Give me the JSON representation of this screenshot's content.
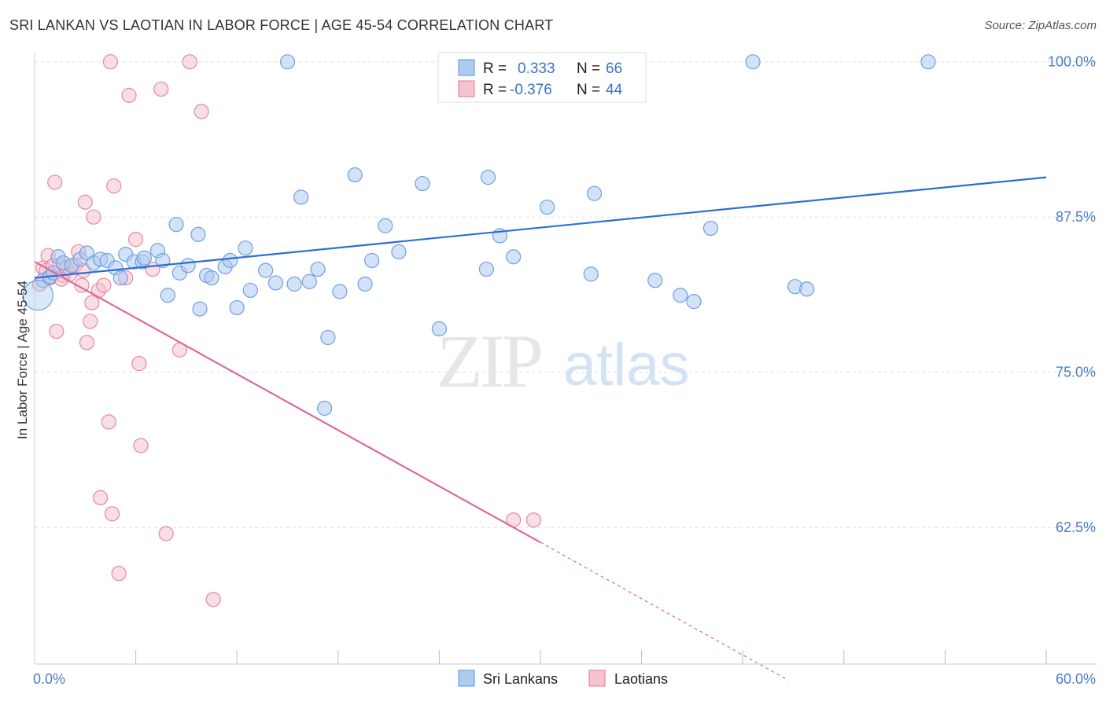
{
  "title": "SRI LANKAN VS LAOTIAN IN LABOR FORCE | AGE 45-54 CORRELATION CHART",
  "source": "Source: ZipAtlas.com",
  "watermark": {
    "zip": "ZIP",
    "atlas": "atlas"
  },
  "chart_data": {
    "type": "scatter",
    "ylabel": "In Labor Force | Age 45-54",
    "xlim": [
      0,
      60
    ],
    "ylim": [
      51.5,
      101.5
    ],
    "x_tick_labels": [
      {
        "value": 0,
        "label": "0.0%"
      },
      {
        "value": 60,
        "label": "60.0%"
      }
    ],
    "x_minor_ticks": [
      6,
      12,
      18,
      24,
      30,
      36,
      42,
      48,
      54,
      60
    ],
    "y_ticks": [
      {
        "value": 100,
        "label": "100.0%"
      },
      {
        "value": 87.5,
        "label": "87.5%"
      },
      {
        "value": 75,
        "label": "75.0%"
      },
      {
        "value": 62.5,
        "label": "62.5%"
      }
    ],
    "grid": "horizontal dashed",
    "legend_position": "top-center",
    "series": [
      {
        "name": "Sri Lankans",
        "color": "#6ea0e0",
        "fill": "#aecbf0",
        "line_color": "#2d6fce",
        "R": "0.333",
        "N": "66",
        "trend": {
          "x0": 0,
          "y0": 82.6,
          "x1": 60,
          "y1": 90.7
        },
        "points": [
          [
            0.5,
            82.4
          ],
          [
            0.9,
            82.7
          ],
          [
            1.1,
            83.0
          ],
          [
            1.4,
            84.3
          ],
          [
            1.7,
            83.8
          ],
          [
            2.2,
            83.6
          ],
          [
            2.7,
            84.1
          ],
          [
            3.1,
            84.6
          ],
          [
            3.5,
            83.8
          ],
          [
            3.9,
            84.1
          ],
          [
            4.3,
            84.0
          ],
          [
            4.8,
            83.4
          ],
          [
            5.1,
            82.6
          ],
          [
            5.4,
            84.5
          ],
          [
            5.9,
            83.9
          ],
          [
            6.4,
            83.9
          ],
          [
            6.5,
            84.2
          ],
          [
            7.3,
            84.8
          ],
          [
            7.6,
            84.0
          ],
          [
            7.9,
            81.2
          ],
          [
            8.4,
            86.9
          ],
          [
            8.6,
            83.0
          ],
          [
            9.1,
            83.6
          ],
          [
            9.7,
            86.1
          ],
          [
            9.8,
            80.1
          ],
          [
            10.2,
            82.8
          ],
          [
            10.5,
            82.6
          ],
          [
            11.3,
            83.5
          ],
          [
            11.6,
            84.0
          ],
          [
            12.0,
            80.2
          ],
          [
            12.5,
            85.0
          ],
          [
            12.8,
            81.6
          ],
          [
            13.7,
            83.2
          ],
          [
            14.3,
            82.2
          ],
          [
            15.0,
            100.0
          ],
          [
            15.4,
            82.1
          ],
          [
            15.8,
            89.1
          ],
          [
            16.3,
            82.3
          ],
          [
            16.8,
            83.3
          ],
          [
            17.2,
            72.1
          ],
          [
            17.4,
            77.8
          ],
          [
            18.1,
            81.5
          ],
          [
            19.0,
            90.9
          ],
          [
            19.6,
            82.1
          ],
          [
            20.0,
            84.0
          ],
          [
            20.8,
            86.8
          ],
          [
            21.6,
            84.7
          ],
          [
            23.0,
            90.2
          ],
          [
            24.0,
            78.5
          ],
          [
            24.9,
            100.0
          ],
          [
            26.9,
            90.7
          ],
          [
            26.8,
            83.3
          ],
          [
            27.6,
            86.0
          ],
          [
            28.4,
            84.3
          ],
          [
            30.4,
            88.3
          ],
          [
            33.0,
            82.9
          ],
          [
            33.2,
            89.4
          ],
          [
            33.6,
            100.0
          ],
          [
            36.8,
            82.4
          ],
          [
            38.3,
            81.2
          ],
          [
            39.1,
            80.7
          ],
          [
            40.1,
            86.6
          ],
          [
            42.6,
            100.0
          ],
          [
            45.1,
            81.9
          ],
          [
            45.8,
            81.7
          ],
          [
            53.0,
            100.0
          ]
        ]
      },
      {
        "name": "Laotians",
        "color": "#e8879f",
        "fill": "#f6c2d0",
        "line_color": "#e0689a",
        "R": "-0.376",
        "N": "44",
        "trend": {
          "x0": 0,
          "y0": 83.9,
          "x1": 30,
          "y1": 61.3
        },
        "trend_dashed_end": {
          "x": 44.7,
          "y": 50.2
        },
        "points": [
          [
            0.3,
            82.1
          ],
          [
            0.5,
            83.4
          ],
          [
            0.7,
            83.2
          ],
          [
            0.8,
            84.4
          ],
          [
            0.9,
            82.6
          ],
          [
            1.1,
            83.6
          ],
          [
            1.2,
            90.3
          ],
          [
            1.3,
            78.3
          ],
          [
            1.5,
            83.6
          ],
          [
            1.7,
            82.8
          ],
          [
            1.9,
            83.4
          ],
          [
            2.1,
            82.9
          ],
          [
            2.4,
            83.6
          ],
          [
            2.6,
            84.7
          ],
          [
            2.9,
            83.2
          ],
          [
            3.0,
            88.7
          ],
          [
            3.1,
            77.4
          ],
          [
            3.3,
            79.1
          ],
          [
            3.4,
            80.6
          ],
          [
            3.5,
            87.5
          ],
          [
            3.8,
            81.6
          ],
          [
            3.9,
            64.9
          ],
          [
            4.1,
            82.0
          ],
          [
            4.4,
            71.0
          ],
          [
            4.5,
            100.0
          ],
          [
            4.6,
            63.6
          ],
          [
            4.7,
            90.0
          ],
          [
            5.0,
            58.8
          ],
          [
            5.4,
            82.6
          ],
          [
            5.6,
            97.3
          ],
          [
            6.0,
            85.7
          ],
          [
            6.2,
            75.7
          ],
          [
            6.3,
            69.1
          ],
          [
            7.0,
            83.3
          ],
          [
            7.5,
            97.8
          ],
          [
            7.8,
            62.0
          ],
          [
            8.6,
            76.8
          ],
          [
            9.2,
            100.0
          ],
          [
            9.9,
            96.0
          ],
          [
            10.6,
            56.7
          ],
          [
            28.4,
            63.1
          ],
          [
            29.6,
            63.1
          ],
          [
            1.6,
            82.5
          ],
          [
            2.8,
            82.0
          ]
        ]
      }
    ]
  }
}
